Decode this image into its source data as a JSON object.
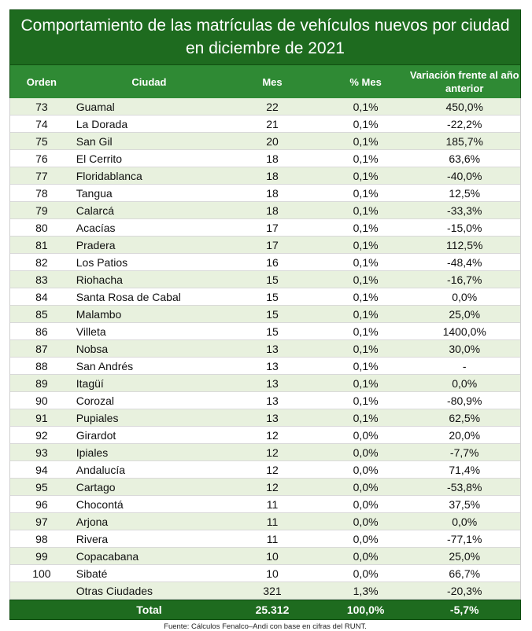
{
  "title": "Comportamiento de las matrículas de vehículos nuevos por ciudad en diciembre de 2021",
  "headers": {
    "orden": "Orden",
    "ciudad": "Ciudad",
    "mes": "Mes",
    "pct_mes": "% Mes",
    "variacion": "Variación frente al año anterior"
  },
  "rows": [
    {
      "orden": "73",
      "ciudad": "Guamal",
      "mes": "22",
      "pct": "0,1%",
      "var": "450,0%"
    },
    {
      "orden": "74",
      "ciudad": "La Dorada",
      "mes": "21",
      "pct": "0,1%",
      "var": "-22,2%"
    },
    {
      "orden": "75",
      "ciudad": "San Gil",
      "mes": "20",
      "pct": "0,1%",
      "var": "185,7%"
    },
    {
      "orden": "76",
      "ciudad": "El Cerrito",
      "mes": "18",
      "pct": "0,1%",
      "var": "63,6%"
    },
    {
      "orden": "77",
      "ciudad": "Floridablanca",
      "mes": "18",
      "pct": "0,1%",
      "var": "-40,0%"
    },
    {
      "orden": "78",
      "ciudad": "Tangua",
      "mes": "18",
      "pct": "0,1%",
      "var": "12,5%"
    },
    {
      "orden": "79",
      "ciudad": "Calarcá",
      "mes": "18",
      "pct": "0,1%",
      "var": "-33,3%"
    },
    {
      "orden": "80",
      "ciudad": "Acacías",
      "mes": "17",
      "pct": "0,1%",
      "var": "-15,0%"
    },
    {
      "orden": "81",
      "ciudad": "Pradera",
      "mes": "17",
      "pct": "0,1%",
      "var": "112,5%"
    },
    {
      "orden": "82",
      "ciudad": "Los Patios",
      "mes": "16",
      "pct": "0,1%",
      "var": "-48,4%"
    },
    {
      "orden": "83",
      "ciudad": "Riohacha",
      "mes": "15",
      "pct": "0,1%",
      "var": "-16,7%"
    },
    {
      "orden": "84",
      "ciudad": "Santa Rosa de Cabal",
      "mes": "15",
      "pct": "0,1%",
      "var": "0,0%"
    },
    {
      "orden": "85",
      "ciudad": "Malambo",
      "mes": "15",
      "pct": "0,1%",
      "var": "25,0%"
    },
    {
      "orden": "86",
      "ciudad": "Villeta",
      "mes": "15",
      "pct": "0,1%",
      "var": "1400,0%"
    },
    {
      "orden": "87",
      "ciudad": "Nobsa",
      "mes": "13",
      "pct": "0,1%",
      "var": "30,0%"
    },
    {
      "orden": "88",
      "ciudad": "San Andrés",
      "mes": "13",
      "pct": "0,1%",
      "var": "-"
    },
    {
      "orden": "89",
      "ciudad": "Itagüí",
      "mes": "13",
      "pct": "0,1%",
      "var": "0,0%"
    },
    {
      "orden": "90",
      "ciudad": "Corozal",
      "mes": "13",
      "pct": "0,1%",
      "var": "-80,9%"
    },
    {
      "orden": "91",
      "ciudad": "Pupiales",
      "mes": "13",
      "pct": "0,1%",
      "var": "62,5%"
    },
    {
      "orden": "92",
      "ciudad": "Girardot",
      "mes": "12",
      "pct": "0,0%",
      "var": "20,0%"
    },
    {
      "orden": "93",
      "ciudad": "Ipiales",
      "mes": "12",
      "pct": "0,0%",
      "var": "-7,7%"
    },
    {
      "orden": "94",
      "ciudad": "Andalucía",
      "mes": "12",
      "pct": "0,0%",
      "var": "71,4%"
    },
    {
      "orden": "95",
      "ciudad": "Cartago",
      "mes": "12",
      "pct": "0,0%",
      "var": "-53,8%"
    },
    {
      "orden": "96",
      "ciudad": "Chocontá",
      "mes": "11",
      "pct": "0,0%",
      "var": "37,5%"
    },
    {
      "orden": "97",
      "ciudad": "Arjona",
      "mes": "11",
      "pct": "0,0%",
      "var": "0,0%"
    },
    {
      "orden": "98",
      "ciudad": "Rivera",
      "mes": "11",
      "pct": "0,0%",
      "var": "-77,1%"
    },
    {
      "orden": "99",
      "ciudad": "Copacabana",
      "mes": "10",
      "pct": "0,0%",
      "var": "25,0%"
    },
    {
      "orden": "100",
      "ciudad": "Sibaté",
      "mes": "10",
      "pct": "0,0%",
      "var": "66,7%"
    },
    {
      "orden": "",
      "ciudad": "Otras Ciudades",
      "mes": "321",
      "pct": "1,3%",
      "var": "-20,3%"
    }
  ],
  "total": {
    "label": "Total",
    "mes": "25.312",
    "pct": "100,0%",
    "var": "-5,7%"
  },
  "source": "Fuente: Cálculos Fenalco–Andi con base en cifras del RUNT.",
  "colors": {
    "title_bg": "#1e6b1f",
    "header_bg": "#2f8a34",
    "row_alt": "#e8f1de"
  }
}
